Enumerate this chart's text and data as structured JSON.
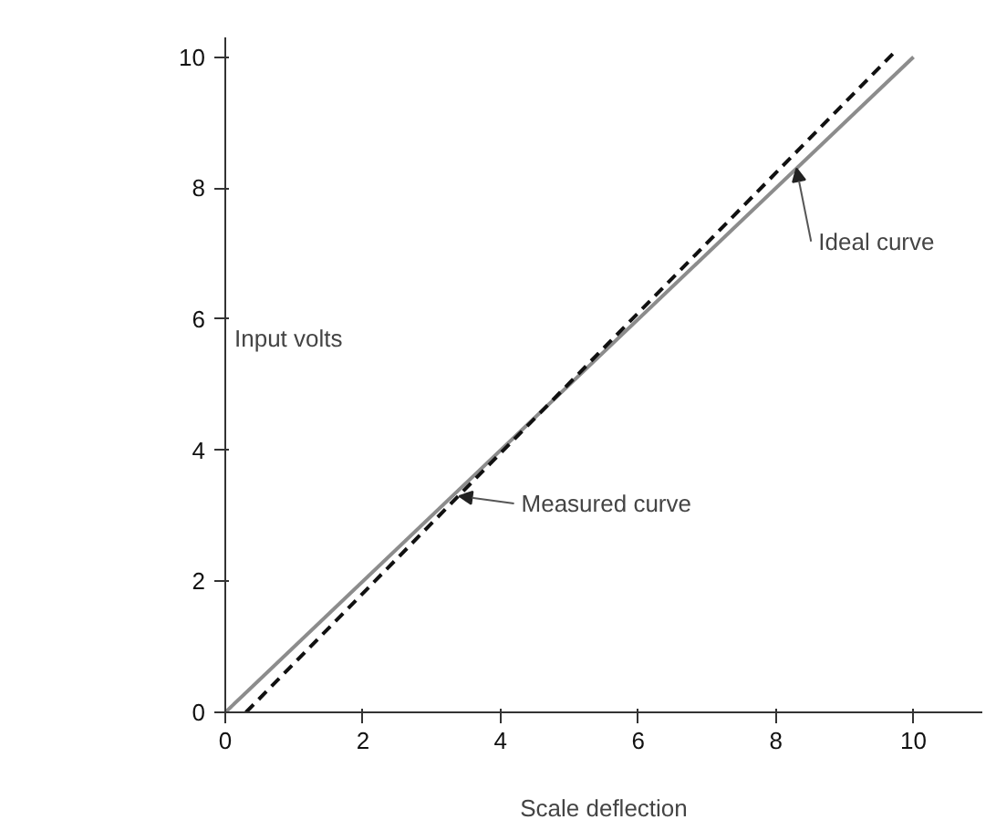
{
  "chart_data": {
    "type": "line",
    "xlabel": "Scale deflection",
    "ylabel": "Input volts",
    "xlim": [
      0,
      11
    ],
    "ylim": [
      0,
      10.3
    ],
    "xticks": [
      0,
      2,
      4,
      6,
      8,
      10
    ],
    "yticks": [
      0,
      2,
      4,
      6,
      8,
      10
    ],
    "grid": false,
    "marker": "none",
    "series": [
      {
        "color": "#8c8c8c",
        "x": [
          0,
          10
        ],
        "values": [
          0,
          10
        ],
        "line_style": "solid"
      },
      {
        "color": "#111111",
        "x": [
          0.3,
          9.7
        ],
        "values": [
          0,
          10.05
        ],
        "line_style": "dashed"
      }
    ],
    "annotations": [
      {
        "text": "Ideal curve",
        "x": 8.3,
        "y": 8.3
      },
      {
        "text": "Measured curve",
        "x": 3.4,
        "y": 3.3
      }
    ]
  }
}
